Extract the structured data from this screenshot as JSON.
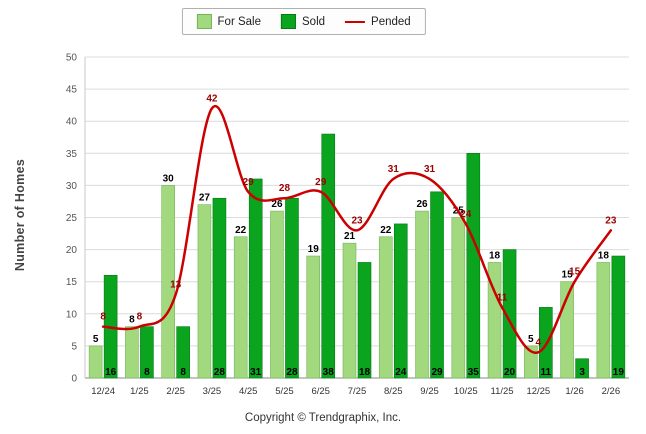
{
  "footer": "Copyright © Trendgraphix, Inc.",
  "colors": {
    "for_sale": "#A2D97E",
    "for_sale_border": "#72B55C",
    "sold": "#0AA41E",
    "sold_border": "#067A14",
    "pended": "#CC0000",
    "pended_label": "#990000",
    "grid": "#DCDCDC",
    "axis": "#8A8A8A",
    "value_label": "#000000",
    "tick_label": "#555555"
  },
  "chart_data": {
    "type": "bar",
    "subtype": "grouped-bars-with-line",
    "title": "",
    "xlabel": "",
    "ylabel": "Number of Homes",
    "ylim": [
      0,
      50
    ],
    "yticks": [
      0,
      5,
      10,
      15,
      20,
      25,
      30,
      35,
      40,
      45,
      50
    ],
    "grid": true,
    "legend_position": "top-center",
    "categories": [
      "12/24",
      "1/25",
      "2/25",
      "3/25",
      "4/25",
      "5/25",
      "6/25",
      "7/25",
      "8/25",
      "9/25",
      "10/25",
      "11/25",
      "12/25",
      "1/26",
      "2/26"
    ],
    "series": [
      {
        "name": "For Sale",
        "type": "bar",
        "values": [
          5,
          8,
          30,
          27,
          22,
          26,
          19,
          21,
          22,
          26,
          25,
          18,
          5,
          15,
          18
        ]
      },
      {
        "name": "Sold",
        "type": "bar",
        "values": [
          16,
          8,
          8,
          28,
          31,
          28,
          38,
          18,
          24,
          29,
          35,
          20,
          11,
          3,
          19
        ]
      },
      {
        "name": "Pended",
        "type": "line",
        "values": [
          8,
          8,
          13,
          42,
          29,
          28,
          29,
          23,
          31,
          31,
          24,
          11,
          4,
          15,
          23
        ]
      }
    ]
  }
}
